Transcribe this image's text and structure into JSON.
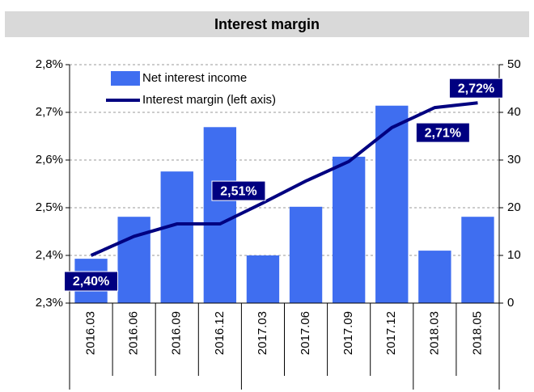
{
  "chart_data": {
    "type": "bar_line",
    "title": "Interest margin",
    "categories": [
      "2016.03",
      "2016.06",
      "2016.09",
      "2016.12",
      "2017.03",
      "2017.06",
      "2017.09",
      "2017.12",
      "2018.03",
      "2018.05"
    ],
    "series": [
      {
        "name": "Net interest income",
        "type": "bar",
        "axis": "y2",
        "color": "#3f6ef0",
        "values": [
          9.3,
          18.1,
          27.6,
          36.9,
          10,
          20.2,
          30.7,
          41.4,
          11,
          18.1
        ]
      },
      {
        "name": "Interest margin (left axis)",
        "type": "line",
        "axis": "y",
        "color": "#000080",
        "values": [
          2.4,
          2.44,
          2.466,
          2.466,
          2.51,
          2.556,
          2.597,
          2.668,
          2.71,
          2.72
        ],
        "value_labels": [
          "2,40%",
          null,
          null,
          null,
          "2,51%",
          null,
          null,
          null,
          "2,71%",
          "2,72%"
        ]
      }
    ],
    "ylim": [
      2.3,
      2.8
    ],
    "yticks": [
      {
        "value": 2.3,
        "label": "2,3%"
      },
      {
        "value": 2.4,
        "label": "2,4%"
      },
      {
        "value": 2.5,
        "label": "2,5%"
      },
      {
        "value": 2.6,
        "label": "2,6%"
      },
      {
        "value": 2.7,
        "label": "2,7%"
      },
      {
        "value": 2.8,
        "label": "2,8%"
      }
    ],
    "y2lim": [
      0,
      50
    ],
    "y2ticks": [
      0,
      10,
      20,
      30,
      40,
      50
    ],
    "legend": "top-left"
  }
}
